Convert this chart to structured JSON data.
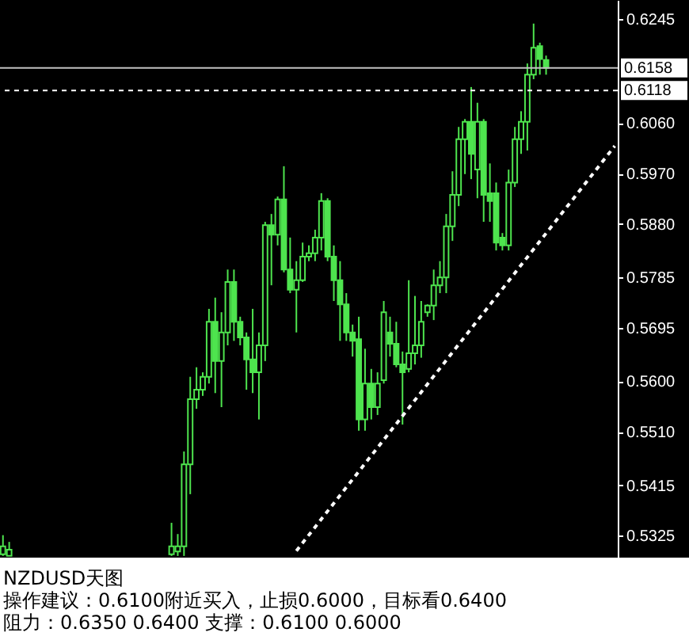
{
  "chart_data": {
    "type": "candlestick",
    "title": "NZDUSD天图",
    "annotations": [
      "操作建议：0.6100附近买入，止损0.6000，目标看0.6400",
      "阻力：0.6350 0.6400 支撑：0.6100 0.6000"
    ],
    "categories": [
      null,
      null,
      null,
      null,
      null,
      null,
      null,
      null,
      null,
      null,
      null,
      null,
      null,
      null,
      null,
      null,
      null,
      null,
      null,
      null,
      null,
      null,
      null,
      null,
      null,
      null,
      null,
      null,
      null,
      null,
      null,
      null,
      null,
      null,
      null,
      null,
      null,
      null,
      null,
      null,
      null,
      null,
      null,
      null,
      null,
      null,
      null,
      null,
      null,
      null,
      null,
      null,
      null,
      null,
      null,
      null,
      null,
      null,
      null,
      null,
      null,
      null,
      null,
      null,
      null,
      null,
      null,
      null,
      null,
      null,
      null,
      null,
      null,
      null,
      null,
      null,
      null,
      null,
      null,
      null,
      null,
      null,
      null,
      null,
      null,
      null,
      null,
      null,
      null,
      null,
      null,
      null,
      null,
      null,
      null,
      null,
      null,
      null,
      null
    ],
    "color": "#4ee44e",
    "ohlc": [
      [
        0.5292,
        0.5326,
        0.5289,
        0.5306
      ],
      [
        0.5289,
        0.5314,
        0.5289,
        0.53
      ],
      null,
      null,
      null,
      null,
      null,
      null,
      null,
      null,
      null,
      null,
      null,
      null,
      null,
      null,
      null,
      null,
      null,
      null,
      null,
      null,
      null,
      null,
      null,
      null,
      null,
      [
        0.5292,
        0.5348,
        0.5289,
        0.5306
      ],
      [
        0.5297,
        0.5328,
        0.5289,
        0.5306
      ],
      [
        0.5306,
        0.5475,
        0.5289,
        0.5452
      ],
      [
        0.5452,
        0.5608,
        0.5399,
        0.5568
      ],
      [
        0.5568,
        0.5625,
        0.5551,
        0.5585
      ],
      [
        0.5585,
        0.5616,
        0.5574,
        0.5608
      ],
      [
        0.5608,
        0.5729,
        0.5596,
        0.5706
      ],
      [
        0.5706,
        0.5749,
        0.5579,
        0.5636
      ],
      [
        0.5636,
        0.5723,
        0.5554,
        0.5687
      ],
      [
        0.5687,
        0.5799,
        0.5664,
        0.5777
      ],
      [
        0.5777,
        0.5799,
        0.5672,
        0.5706
      ],
      [
        0.5706,
        0.5715,
        0.5664,
        0.5678
      ],
      [
        0.5678,
        0.5687,
        0.5585,
        0.5639
      ],
      [
        0.5639,
        0.5729,
        0.5579,
        0.5616
      ],
      [
        0.5616,
        0.5687,
        0.5532,
        0.5664
      ],
      [
        0.5664,
        0.5884,
        0.5636,
        0.5878
      ],
      [
        0.5878,
        0.5898,
        0.5771,
        0.5861
      ],
      [
        0.5861,
        0.5929,
        0.5842,
        0.5924
      ],
      [
        0.5924,
        0.5983,
        0.5794,
        0.5799
      ],
      [
        0.5799,
        0.5856,
        0.5757,
        0.5763
      ],
      [
        0.5763,
        0.5814,
        0.5687,
        0.578
      ],
      [
        0.578,
        0.5847,
        0.5777,
        0.5822
      ],
      [
        0.5822,
        0.5842,
        0.5814,
        0.5828
      ],
      [
        0.5828,
        0.587,
        0.5814,
        0.5856
      ],
      [
        0.5856,
        0.5935,
        0.5833,
        0.5921
      ],
      [
        0.5921,
        0.5926,
        0.5814,
        0.5822
      ],
      [
        0.5822,
        0.5842,
        0.5743,
        0.578
      ],
      [
        0.578,
        0.5814,
        0.5672,
        0.5737
      ],
      [
        0.5737,
        0.5757,
        0.5672,
        0.5687
      ],
      [
        0.5687,
        0.5701,
        0.5644,
        0.5672
      ],
      [
        0.5675,
        0.5715,
        0.5512,
        0.5532
      ],
      [
        0.5532,
        0.5658,
        0.5512,
        0.5596
      ],
      [
        0.5596,
        0.5622,
        0.5532,
        0.5554
      ],
      [
        0.5554,
        0.5616,
        0.554,
        0.5596
      ],
      [
        0.5602,
        0.5743,
        0.5596,
        0.5723
      ],
      [
        0.5687,
        0.5715,
        0.5644,
        0.5667
      ],
      [
        0.5667,
        0.5706,
        0.5625,
        0.563
      ],
      [
        0.563,
        0.5653,
        0.5523,
        0.5616
      ],
      [
        0.5622,
        0.578,
        0.5616,
        0.565
      ],
      [
        0.565,
        0.5752,
        0.563,
        0.5664
      ],
      [
        0.5664,
        0.5743,
        0.5642,
        0.5706
      ],
      [
        0.5723,
        0.5737,
        0.5715,
        0.5735
      ],
      [
        0.5735,
        0.5799,
        0.5709,
        0.5771
      ],
      [
        0.5771,
        0.5814,
        0.5757,
        0.5785
      ],
      [
        0.5785,
        0.5898,
        0.5757,
        0.5876
      ],
      [
        0.5876,
        0.5974,
        0.585,
        0.5932
      ],
      [
        0.5932,
        0.6053,
        0.5912,
        0.6031
      ],
      [
        0.6031,
        0.6067,
        0.5969,
        0.6062
      ],
      [
        0.6062,
        0.6124,
        0.596,
        0.6005
      ],
      [
        0.5977,
        0.6096,
        0.5926,
        0.6062
      ],
      [
        0.6062,
        0.6067,
        0.5884,
        0.5932
      ],
      [
        0.5935,
        0.5988,
        0.5884,
        0.5921
      ],
      [
        0.5935,
        0.5954,
        0.5833,
        0.5847
      ],
      [
        0.5856,
        0.5864,
        0.5833,
        0.5842
      ],
      [
        0.5842,
        0.5977,
        0.5833,
        0.5954
      ],
      [
        0.5954,
        0.6053,
        0.5946,
        0.6031
      ],
      [
        0.6031,
        0.6081,
        0.6005,
        0.6062
      ],
      [
        0.6062,
        0.6166,
        0.6011,
        0.6146
      ],
      [
        0.6146,
        0.6237,
        0.6138,
        0.6194
      ],
      [
        0.6197,
        0.6203,
        0.6146,
        0.6174
      ],
      [
        0.6172,
        0.618,
        0.6146,
        0.6158
      ],
      null,
      null,
      null,
      null,
      null,
      null,
      null,
      null,
      null,
      null,
      null
    ],
    "series": [
      {
        "type": "line",
        "values": [
          null,
          null,
          null,
          null,
          null,
          null,
          null,
          null,
          null,
          null,
          null,
          null,
          null,
          null,
          null,
          null,
          null,
          null,
          null,
          null,
          null,
          null,
          null,
          null,
          null,
          null,
          null,
          null,
          null,
          null,
          null,
          null,
          null,
          null,
          null,
          null,
          null,
          null,
          null,
          null,
          null,
          null,
          null,
          null,
          null,
          null,
          null,
          0.5298,
          null,
          null,
          null,
          null,
          null,
          null,
          null,
          null,
          null,
          null,
          null,
          null,
          null,
          null,
          null,
          null,
          null,
          null,
          null,
          null,
          null,
          null,
          null,
          null,
          null,
          null,
          null,
          null,
          null,
          null,
          null,
          null,
          null,
          null,
          null,
          null,
          null,
          null,
          null,
          null,
          null,
          null,
          null,
          null,
          null,
          null,
          null,
          null,
          null,
          null,
          0.6019
        ],
        "color": "#ffffff",
        "line_style": "dashed"
      }
    ],
    "ylim": [
      0.5286,
      0.6279
    ],
    "yticks": [
      0.5325,
      0.5415,
      {
        "value": 0.551,
        "label": "0.5510"
      },
      {
        "value": 0.56,
        "label": "0.5600"
      },
      0.5695,
      0.5785,
      {
        "value": 0.588,
        "label": "0.5880"
      },
      {
        "value": 0.597,
        "label": "0.5970"
      },
      {
        "value": 0.606,
        "label": "0.6060"
      },
      0.6245
    ],
    "ref_lines": [
      {
        "axis": "y",
        "value": 0.6158,
        "label": "0.6158",
        "color": "#c0c0c0",
        "line_style": "solid"
      },
      {
        "axis": "y",
        "value": 0.6118,
        "label": "0.6118",
        "color": "#ffffff",
        "line_style": "dashed"
      }
    ],
    "tick_labels": "y",
    "grid": false
  }
}
